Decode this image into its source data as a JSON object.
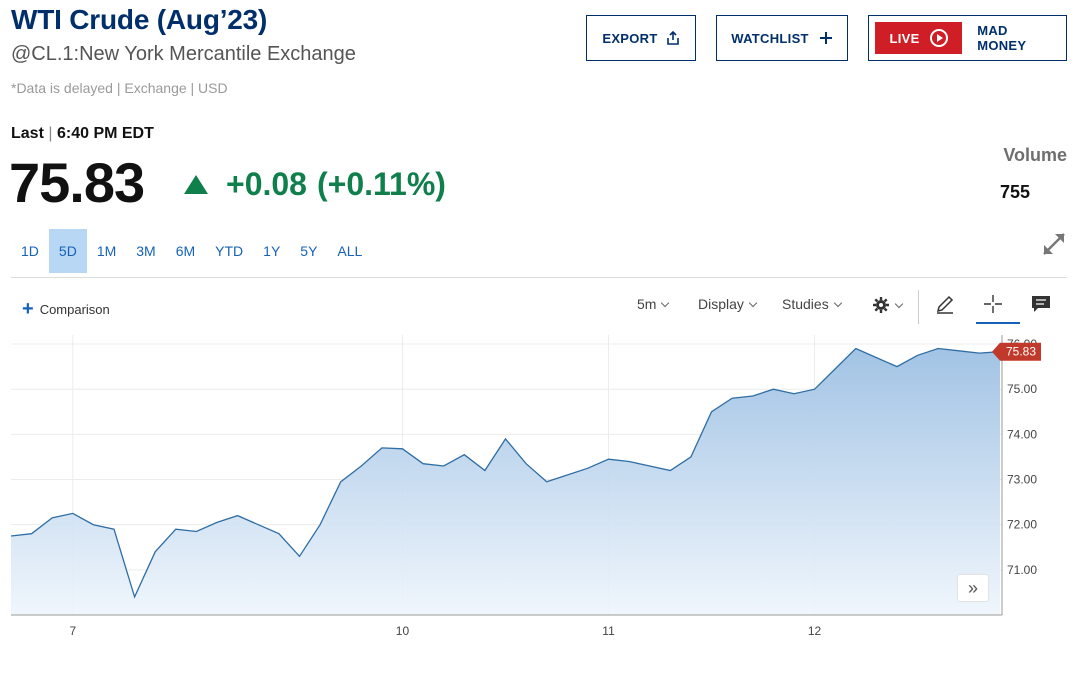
{
  "header": {
    "title": "WTI Crude (Aug’23)",
    "subtitle": "@CL.1:New York Mercantile Exchange",
    "delayed_note": "*Data is delayed | Exchange | USD"
  },
  "buttons": {
    "export": "EXPORT",
    "watchlist": "WATCHLIST",
    "live": "LIVE",
    "mad_money": "MAD MONEY"
  },
  "quote": {
    "last_label": "Last",
    "last_time": "6:40 PM EDT",
    "price": "75.83",
    "change": "+0.08",
    "change_pct": "(+0.11%)",
    "volume_label": "Volume",
    "volume_value": "755"
  },
  "colors": {
    "brand_navy": "#002f6c",
    "positive": "#0f7f4b",
    "live_red": "#d01e27",
    "link_blue": "#1662b8",
    "active_tab_bg": "#b7d7f5",
    "chart_line": "#2f6ea5",
    "last_price_badge": "#c0392b"
  },
  "range_tabs": [
    {
      "label": "1D"
    },
    {
      "label": "5D",
      "active": true
    },
    {
      "label": "1M"
    },
    {
      "label": "3M"
    },
    {
      "label": "6M"
    },
    {
      "label": "YTD"
    },
    {
      "label": "1Y"
    },
    {
      "label": "5Y"
    },
    {
      "label": "ALL"
    }
  ],
  "toolbar": {
    "comparison": "Comparison",
    "interval": "5m",
    "display": "Display",
    "studies": "Studies",
    "icons": [
      "gear-icon",
      "pencil-icon",
      "crosshair-icon",
      "comment-icon"
    ]
  },
  "chart_data": {
    "type": "area",
    "title": "",
    "xlabel": "",
    "ylabel": "",
    "ylim": [
      70.0,
      76.2
    ],
    "y_ticks": [
      "71.00",
      "72.00",
      "73.00",
      "74.00",
      "75.00",
      "76.00"
    ],
    "x_ticks": [
      "7",
      "10",
      "11",
      "12"
    ],
    "last_price_label": "75.83",
    "grid": true,
    "x": [
      "Jul 6 19:00",
      "Jul 6 21:00",
      "Jul 6 23:00",
      "Jul 7 01:00",
      "Jul 7 02:30",
      "Jul 7 03:30",
      "Jul 7 04:30",
      "Jul 7 06:00",
      "Jul 7 08:00",
      "Jul 7 09:30",
      "Jul 7 10:30",
      "Jul 7 11:30",
      "Jul 7 12:30",
      "Jul 7 13:30",
      "Jul 7 14:30",
      "Jul 7 16:00",
      "Jul 9 18:00",
      "Jul 9 19:30",
      "Jul 9 22:00",
      "Jul 10 00:00",
      "Jul 10 03:00",
      "Jul 10 06:00",
      "Jul 10 08:30",
      "Jul 10 09:30",
      "Jul 10 11:00",
      "Jul 10 12:30",
      "Jul 10 14:00",
      "Jul 10 16:00",
      "Jul 10 20:00",
      "Jul 11 00:00",
      "Jul 11 03:00",
      "Jul 11 06:00",
      "Jul 11 08:30",
      "Jul 11 10:00",
      "Jul 11 11:30",
      "Jul 11 13:00",
      "Jul 11 15:00",
      "Jul 11 19:00",
      "Jul 11 23:00",
      "Jul 12 03:00",
      "Jul 12 06:00",
      "Jul 12 08:30",
      "Jul 12 09:30",
      "Jul 12 10:30",
      "Jul 12 12:00",
      "Jul 12 14:00",
      "Jul 12 16:00",
      "Jul 12 18:00",
      "Jul 12 18:40"
    ],
    "values": [
      71.75,
      71.8,
      72.15,
      72.25,
      72.0,
      71.9,
      70.4,
      71.4,
      71.9,
      71.85,
      72.05,
      72.2,
      72.0,
      71.8,
      71.3,
      72.0,
      72.95,
      73.3,
      73.7,
      73.68,
      73.35,
      73.3,
      73.55,
      73.2,
      73.9,
      73.35,
      72.95,
      73.1,
      73.25,
      73.45,
      73.4,
      73.3,
      73.2,
      73.5,
      74.5,
      74.8,
      74.85,
      75.0,
      74.9,
      75.0,
      75.45,
      75.9,
      75.7,
      75.5,
      75.75,
      75.9,
      75.85,
      75.8,
      75.83
    ],
    "series": [
      {
        "values_ref": "values"
      }
    ]
  }
}
